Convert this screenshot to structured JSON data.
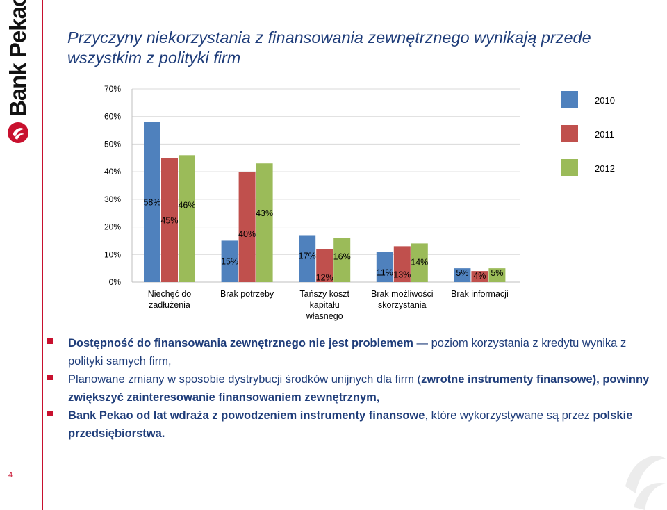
{
  "sidebar": {
    "brand": "Bank Pekao",
    "page_number": "4"
  },
  "title": "Przyczyny niekorzystania z finansowania zewnętrznego wynikają przede wszystkim z polityki firm",
  "colors": {
    "s2010": "#4f81bd",
    "s2011": "#c0504d",
    "s2012": "#9bbb59",
    "accent": "#c8102e",
    "title": "#1f3d7a"
  },
  "chart_data": {
    "type": "bar",
    "categories": [
      [
        "Niechęć do",
        "zadłużenia"
      ],
      [
        "Brak potrzeby"
      ],
      [
        "Tańszy koszt",
        "kapitału",
        "własnego"
      ],
      [
        "Brak możliwości",
        "skorzystania"
      ],
      [
        "Brak informacji"
      ]
    ],
    "series": [
      {
        "name": "2010",
        "values": [
          58,
          15,
          17,
          11,
          5
        ],
        "labels": [
          "58%",
          "15%",
          "17%",
          "11%",
          "5%"
        ]
      },
      {
        "name": "2011",
        "values": [
          45,
          40,
          12,
          13,
          4
        ],
        "labels": [
          "45%",
          "40%",
          "12%",
          "13%",
          "4%"
        ]
      },
      {
        "name": "2012",
        "values": [
          46,
          43,
          16,
          14,
          5
        ],
        "labels": [
          "46%",
          "43%",
          "16%",
          "14%",
          "5%"
        ]
      }
    ],
    "yticks": [
      "0%",
      "10%",
      "20%",
      "30%",
      "40%",
      "50%",
      "60%",
      "70%"
    ],
    "ylim": [
      0,
      70
    ],
    "grid": true,
    "legend_position": "top-right"
  },
  "bullets": [
    [
      {
        "t": "Dostępność do finansowania zewnętrznego nie jest problemem",
        "b": true
      },
      {
        "t": " — poziom korzystania z kredytu wynika z polityki samych firm,",
        "b": false
      }
    ],
    [
      {
        "t": "Planowane zmiany w sposobie dystrybucji środków unijnych dla firm (",
        "b": false
      },
      {
        "t": "zwrotne instrumenty finansowe), powinny zwiększyć zainteresowanie finansowaniem zewnętrznym,",
        "b": true
      }
    ],
    [
      {
        "t": "Bank Pekao od lat wdraża z powodzeniem instrumenty finansowe",
        "b": true
      },
      {
        "t": ", które wykorzystywane są przez ",
        "b": false
      },
      {
        "t": "polskie przedsiębiorstwa.",
        "b": true
      }
    ]
  ]
}
